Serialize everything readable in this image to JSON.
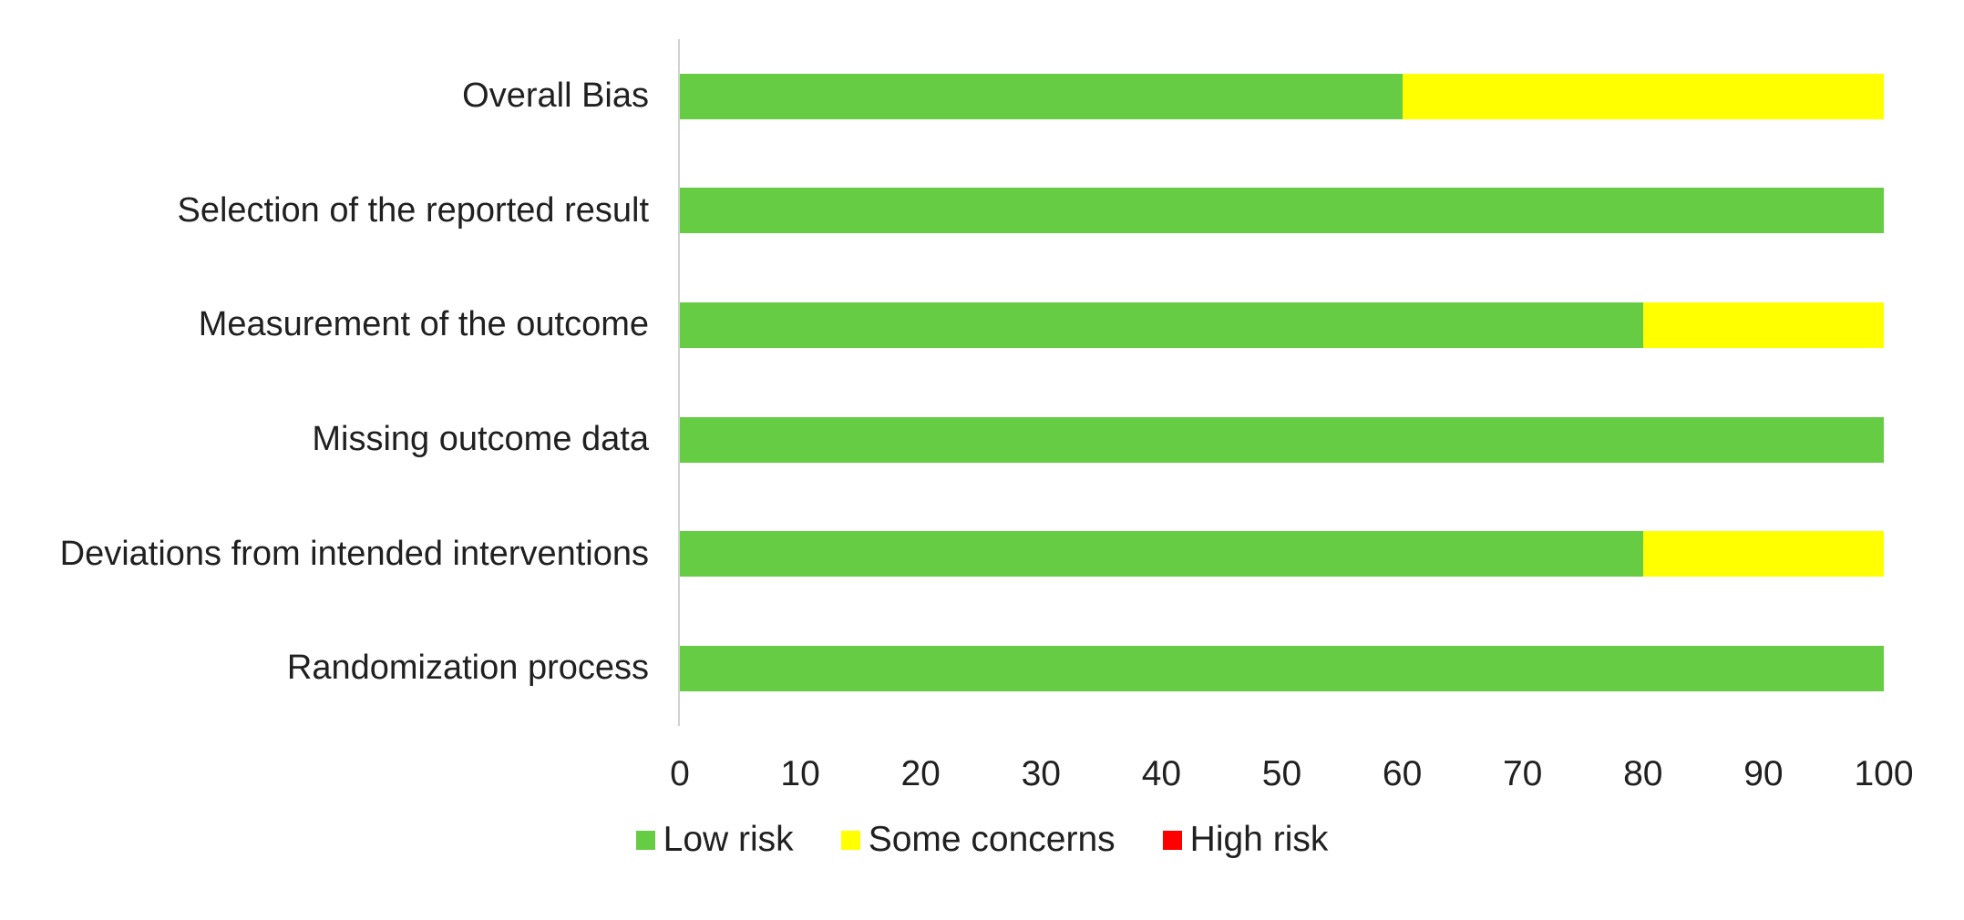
{
  "figure": {
    "background": "#FFFFFF",
    "text_color": "#202020",
    "axis_line_color": "#D1D1D1"
  },
  "chart_data": {
    "type": "bar",
    "orientation": "horizontal",
    "stacked": true,
    "title": "",
    "xlabel": "",
    "ylabel": "",
    "grid": false,
    "categories_top_to_bottom": [
      "Overall Bias",
      "Selection of the reported result",
      "Measurement of the outcome",
      "Missing outcome data",
      "Deviations from intended interventions",
      "Randomization process"
    ],
    "series": [
      {
        "name": "Low risk",
        "color": "#66CC44",
        "values": [
          60,
          100,
          80,
          100,
          80,
          100
        ]
      },
      {
        "name": "Some concerns",
        "color": "#FFFF00",
        "values": [
          40,
          0,
          20,
          0,
          20,
          0
        ]
      },
      {
        "name": "High risk",
        "color": "#FF0000",
        "values": [
          0,
          0,
          0,
          0,
          0,
          0
        ]
      }
    ],
    "x_axis": {
      "min": 0,
      "max": 100,
      "tick_step": 10,
      "tick_labels": [
        "0",
        "10",
        "20",
        "30",
        "40",
        "50",
        "60",
        "70",
        "80",
        "90",
        "100"
      ]
    },
    "legend": {
      "position": "bottom",
      "entries": [
        {
          "label": "Low risk",
          "color": "#66CC44"
        },
        {
          "label": "Some concerns",
          "color": "#FFFF00"
        },
        {
          "label": "High risk",
          "color": "#FF0000"
        }
      ]
    }
  }
}
